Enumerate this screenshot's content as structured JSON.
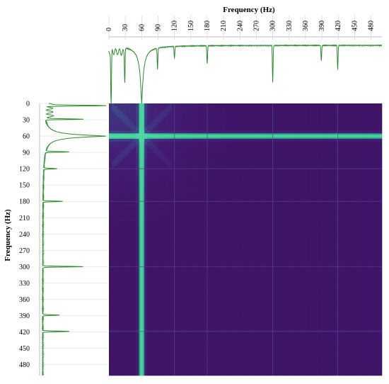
{
  "chart_data": {
    "type": "heatmap",
    "title": "",
    "xlabel": "Frequency (Hz)",
    "ylabel": "Frequency (Hz)",
    "x_ticks": [
      0,
      30,
      60,
      90,
      120,
      150,
      180,
      210,
      240,
      270,
      300,
      330,
      360,
      390,
      420,
      450,
      480
    ],
    "y_ticks": [
      0,
      30,
      60,
      90,
      120,
      150,
      180,
      210,
      240,
      270,
      300,
      330,
      360,
      390,
      420,
      450,
      480
    ],
    "xlim": [
      0,
      500
    ],
    "ylim": [
      0,
      500
    ],
    "grid": true,
    "colormap": "viridis",
    "spectrum_color": "#2e8b2e",
    "spectrum": {
      "dominant_peak_hz": 60,
      "peaks_hz": [
        4,
        29,
        60,
        89,
        120,
        180,
        300,
        389,
        419
      ],
      "peak_values": [
        1.0,
        0.45,
        0.95,
        0.35,
        0.2,
        0.3,
        0.6,
        0.25,
        0.4
      ]
    },
    "heatmap": {
      "bright_line_hz": 60,
      "secondary_lines_hz": [
        120,
        180,
        300,
        419
      ],
      "min_color": "#3b0f5e",
      "max_color": "#4fd7a4"
    }
  }
}
